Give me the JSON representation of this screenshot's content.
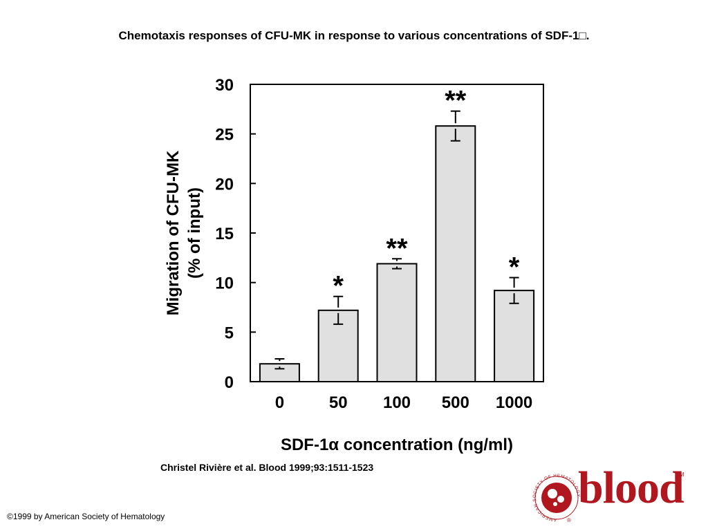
{
  "slide": {
    "title": "Chemotaxis responses of CFU-MK in response to various concentrations of SDF-1□.",
    "citation": "Christel Rivière et al. Blood 1999;93:1511-1523",
    "copyright": "©1999 by American Society of Hematology"
  },
  "logo": {
    "wordmark": "blood",
    "trademark": "TM",
    "ring_text": "AMERICAN SOCIETY OF HEMATOLOGY",
    "registered": "®",
    "color": "#b0171f"
  },
  "chart_data": {
    "type": "bar",
    "title": "",
    "categories": [
      "0",
      "50",
      "100",
      "500",
      "1000"
    ],
    "values": [
      1.8,
      7.2,
      11.9,
      25.8,
      9.2
    ],
    "error": [
      0.5,
      1.4,
      0.5,
      1.5,
      1.3
    ],
    "significance": [
      "",
      "*",
      "**",
      "**",
      "*"
    ],
    "ylabel_line1": "Migration of CFU-MK",
    "ylabel_line2": "(% of input)",
    "xlabel": "SDF-1α concentration (ng/ml)",
    "ylim": [
      0,
      30
    ],
    "yticks": [
      0,
      5,
      10,
      15,
      20,
      25,
      30
    ],
    "grid": false,
    "bar_color": "#e0e0e0"
  }
}
